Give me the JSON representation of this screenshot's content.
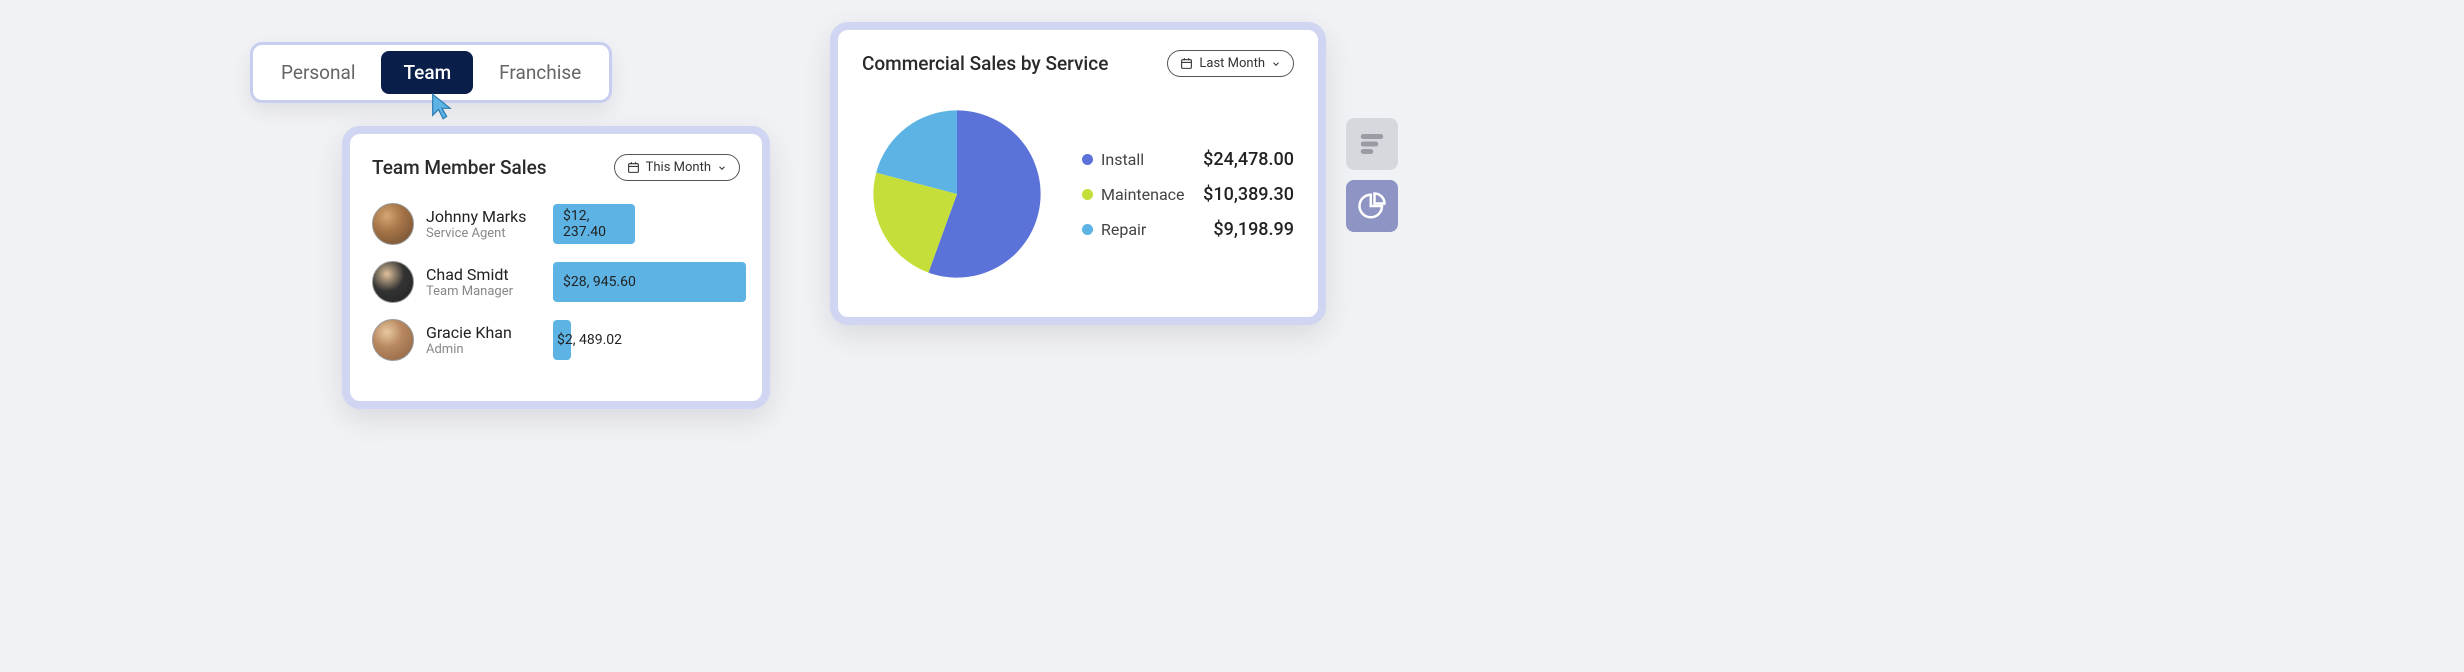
{
  "tabs": {
    "items": [
      "Personal",
      "Team",
      "Franchise"
    ],
    "active_index": 1
  },
  "team_card": {
    "title": "Team Member Sales",
    "period": "This Month",
    "bar_color": "#5cb3e4",
    "max_value": 30000,
    "members": [
      {
        "name": "Johnny Marks",
        "role": "Service Agent",
        "value": 12237.4,
        "display": "$12, 237.40"
      },
      {
        "name": "Chad Smidt",
        "role": "Team Manager",
        "value": 28945.6,
        "display": "$28, 945.60"
      },
      {
        "name": "Gracie Khan",
        "role": "Admin",
        "value": 2489.02,
        "display": "$2, 489.02"
      }
    ]
  },
  "pie_card": {
    "title": "Commercial Sales by Service",
    "period": "Last Month",
    "slices": [
      {
        "label": "Install",
        "value": 24478.0,
        "display": "$24,478.00",
        "color": "#5b72d9"
      },
      {
        "label": "Maintenace",
        "value": 10389.3,
        "display": "$10,389.30",
        "color": "#c5de3a"
      },
      {
        "label": "Repair",
        "value": 9198.99,
        "display": "$9,198.99",
        "color": "#5cb3e4"
      }
    ]
  },
  "chart_type": {
    "active": "pie",
    "bar_icon_color": "#9a9ca5",
    "pie_icon_color": "#ffffff"
  },
  "colors": {
    "background": "#f1f2f6",
    "card_border": "#d0d6f2",
    "tab_active_bg": "#0a1e4a"
  }
}
